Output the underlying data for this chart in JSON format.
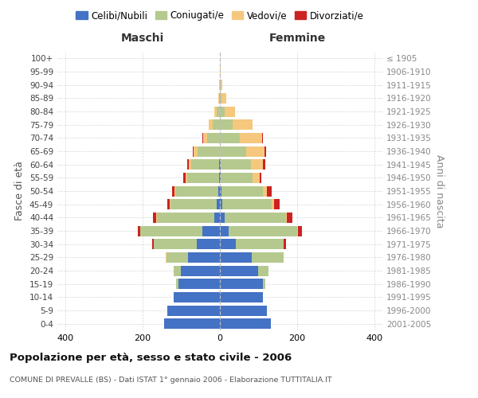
{
  "age_groups": [
    "0-4",
    "5-9",
    "10-14",
    "15-19",
    "20-24",
    "25-29",
    "30-34",
    "35-39",
    "40-44",
    "45-49",
    "50-54",
    "55-59",
    "60-64",
    "65-69",
    "70-74",
    "75-79",
    "80-84",
    "85-89",
    "90-94",
    "95-99",
    "100+"
  ],
  "birth_years": [
    "2001-2005",
    "1996-2000",
    "1991-1995",
    "1986-1990",
    "1981-1985",
    "1976-1980",
    "1971-1975",
    "1966-1970",
    "1961-1965",
    "1956-1960",
    "1951-1955",
    "1946-1950",
    "1941-1945",
    "1936-1940",
    "1931-1935",
    "1926-1930",
    "1921-1925",
    "1916-1920",
    "1911-1915",
    "1906-1910",
    "≤ 1905"
  ],
  "maschi_celibi": [
    145,
    135,
    120,
    108,
    100,
    82,
    60,
    45,
    15,
    8,
    5,
    3,
    2,
    0,
    0,
    0,
    0,
    0,
    0,
    0,
    0
  ],
  "maschi_coniugati": [
    0,
    0,
    0,
    5,
    20,
    55,
    110,
    160,
    148,
    120,
    110,
    82,
    72,
    58,
    32,
    18,
    8,
    3,
    1,
    0,
    0
  ],
  "maschi_vedovi": [
    0,
    0,
    0,
    0,
    0,
    3,
    0,
    0,
    1,
    2,
    2,
    4,
    7,
    10,
    12,
    10,
    6,
    2,
    1,
    0,
    0
  ],
  "maschi_divorziati": [
    0,
    0,
    0,
    0,
    0,
    0,
    6,
    8,
    8,
    6,
    6,
    5,
    4,
    3,
    2,
    0,
    0,
    0,
    0,
    0,
    0
  ],
  "femmine_nubili": [
    132,
    122,
    112,
    112,
    98,
    82,
    42,
    22,
    12,
    6,
    4,
    2,
    2,
    0,
    0,
    0,
    0,
    0,
    0,
    0,
    0
  ],
  "femmine_coniugate": [
    0,
    0,
    0,
    5,
    28,
    82,
    122,
    178,
    158,
    128,
    108,
    82,
    78,
    68,
    52,
    32,
    12,
    5,
    2,
    1,
    0
  ],
  "femmine_vedove": [
    0,
    0,
    0,
    0,
    0,
    0,
    0,
    1,
    2,
    6,
    10,
    18,
    32,
    48,
    58,
    52,
    28,
    12,
    4,
    2,
    0
  ],
  "femmine_divorziate": [
    0,
    0,
    0,
    0,
    0,
    0,
    6,
    12,
    16,
    14,
    12,
    6,
    5,
    3,
    2,
    0,
    0,
    0,
    0,
    0,
    0
  ],
  "colors": {
    "celibi_nubili": "#4472C4",
    "coniugati_e": "#b5c98e",
    "vedovi_e": "#f5c87e",
    "divorziati_e": "#cc2222"
  },
  "xlim": 420,
  "title": "Popolazione per età, sesso e stato civile - 2006",
  "subtitle": "COMUNE DI PREVALLE (BS) - Dati ISTAT 1° gennaio 2006 - Elaborazione TUTTITALIA.IT",
  "ylabel": "Fasce di età",
  "ylabel_right": "Anni di nascita",
  "legend_labels": [
    "Celibi/Nubili",
    "Coniugati/e",
    "Vedovi/e",
    "Divorziati/e"
  ],
  "maschi_label": "Maschi",
  "femmine_label": "Femmine",
  "background_color": "#ffffff",
  "grid_color": "#cccccc"
}
